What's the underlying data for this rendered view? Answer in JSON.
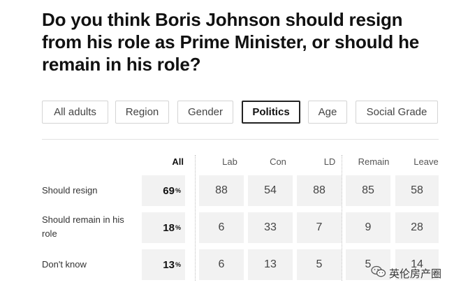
{
  "question": "Do you think Boris Johnson should resign from his role as Prime Minister, or should he remain in his role?",
  "tabs": [
    {
      "label": "All adults",
      "active": false
    },
    {
      "label": "Region",
      "active": false
    },
    {
      "label": "Gender",
      "active": false
    },
    {
      "label": "Politics",
      "active": true
    },
    {
      "label": "Age",
      "active": false
    },
    {
      "label": "Social Grade",
      "active": false
    }
  ],
  "columns": {
    "all": "All",
    "lab": "Lab",
    "con": "Con",
    "ld": "LD",
    "remain": "Remain",
    "leave": "Leave"
  },
  "percent_sign": "%",
  "rows": [
    {
      "label": "Should resign",
      "all": "69",
      "lab": "88",
      "con": "54",
      "ld": "88",
      "remain": "85",
      "leave": "58"
    },
    {
      "label": "Should remain in his role",
      "all": "18",
      "lab": "6",
      "con": "33",
      "ld": "7",
      "remain": "9",
      "leave": "28"
    },
    {
      "label": "Don't know",
      "all": "13",
      "lab": "6",
      "con": "13",
      "ld": "5",
      "remain": "5",
      "leave": "14"
    }
  ],
  "watermark": {
    "text": "英伦房产圈",
    "icon": "wechat-icon"
  },
  "colors": {
    "active_tab_border": "#222222",
    "cell_background": "#f2f2f2"
  }
}
